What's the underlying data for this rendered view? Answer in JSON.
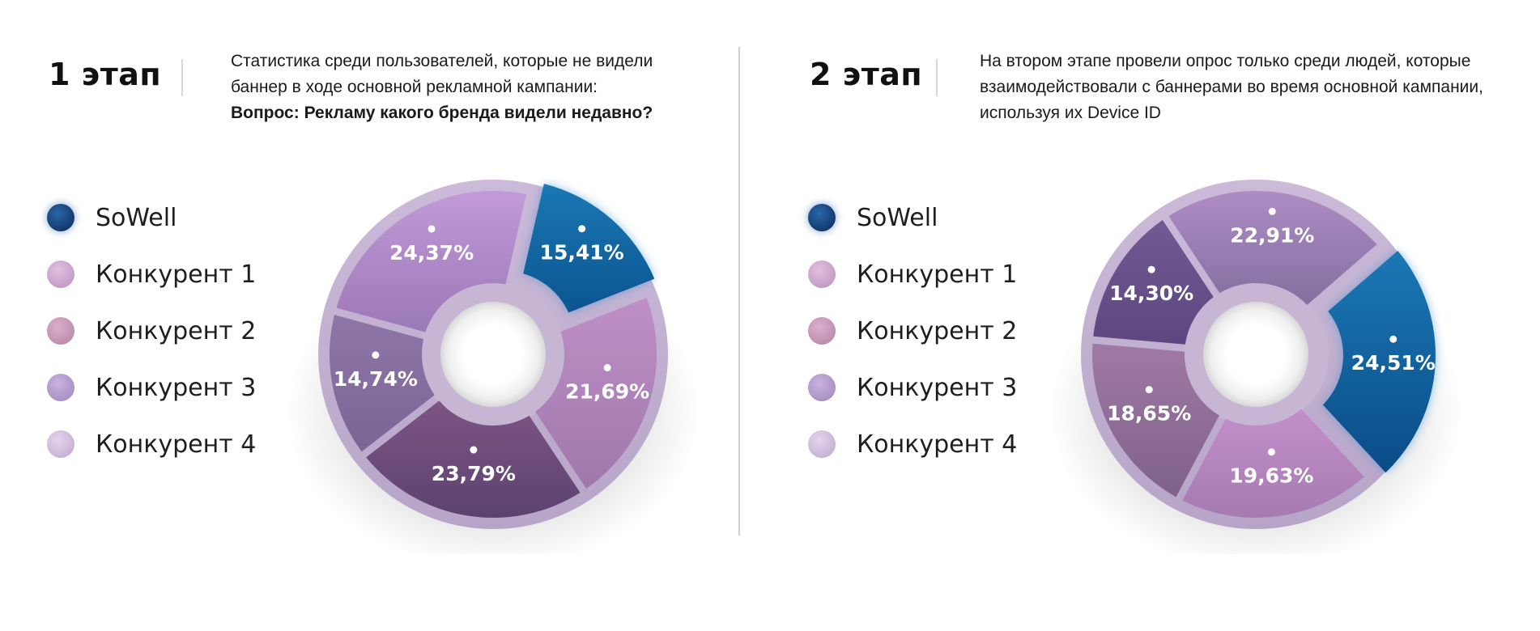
{
  "legend": {
    "items": [
      {
        "label": "SoWell",
        "color": "#0c3f7a"
      },
      {
        "label": "Конкурент 1",
        "color": "#cfa3cf"
      },
      {
        "label": "Конкурент 2",
        "color": "#c99ab7"
      },
      {
        "label": "Конкурент 3",
        "color": "#b59ad0"
      },
      {
        "label": "Конкурент 4",
        "color": "#d4bfe0"
      }
    ]
  },
  "stages": [
    {
      "title": "1 этап",
      "description_lines": [
        "Статистика среди пользователей,  которые не видели",
        "баннер в ходе основной рекламной кампании:"
      ],
      "question": "Вопрос: Рекламу какого бренда видели недавно?"
    },
    {
      "title": "2 этап",
      "description_lines": [
        "На втором этапе провели опрос только среди людей, которые",
        "взаимодействовали с баннерами во время основной кампании,",
        "используя их Device ID"
      ],
      "question": ""
    }
  ],
  "chart_data": [
    {
      "type": "pie",
      "donut": true,
      "segments": [
        {
          "label": "15,41%",
          "value": 15.41,
          "color_top": "#1a78b4",
          "color_bottom": "#0b5590"
        },
        {
          "label": "21,69%",
          "value": 21.69,
          "color_top": "#bf8fc7",
          "color_bottom": "#9f78ab"
        },
        {
          "label": "23,79%",
          "value": 23.79,
          "color_top": "#7e5584",
          "color_bottom": "#5c4270"
        },
        {
          "label": "14,74%",
          "value": 14.74,
          "color_top": "#8f76a9",
          "color_bottom": "#7a6595"
        },
        {
          "label": "24,37%",
          "value": 24.37,
          "color_top": "#c29ad8",
          "color_bottom": "#9b78b6"
        }
      ]
    },
    {
      "type": "pie",
      "donut": true,
      "segments": [
        {
          "label": "24,51%",
          "value": 24.51,
          "color_top": "#1a78b4",
          "color_bottom": "#0a4c88"
        },
        {
          "label": "19,63%",
          "value": 19.63,
          "color_top": "#c48fcb",
          "color_bottom": "#a57bb1"
        },
        {
          "label": "18,65%",
          "value": 18.65,
          "color_top": "#a07aa4",
          "color_bottom": "#7f6189"
        },
        {
          "label": "14,30%",
          "value": 14.3,
          "color_top": "#725a93",
          "color_bottom": "#5c4781"
        },
        {
          "label": "22,91%",
          "value": 22.91,
          "color_top": "#ae8cc4",
          "color_bottom": "#836fa0"
        }
      ]
    }
  ]
}
